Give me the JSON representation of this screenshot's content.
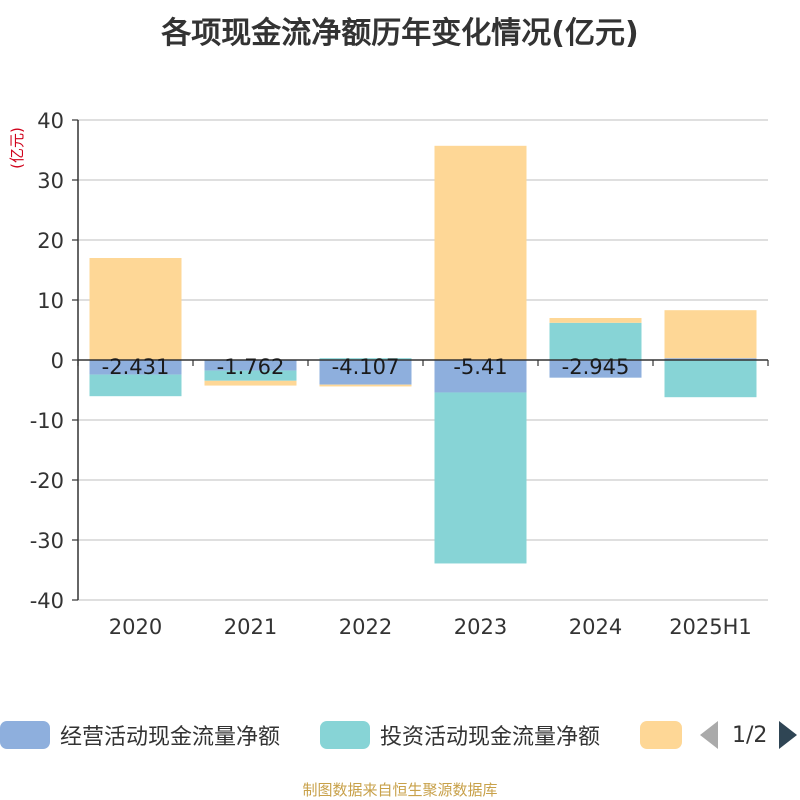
{
  "title": "各项现金流净额历年变化情况(亿元)",
  "source": "制图数据来自恒生聚源数据库",
  "colors": {
    "operating": "#8eafdd",
    "investing": "#87d4d6",
    "financing": "#fed796",
    "label": "#1a1a1a",
    "unit": "#d0021b"
  },
  "legend": {
    "items": [
      {
        "label": "经营活动现金流量净额",
        "color": "#8eafdd"
      },
      {
        "label": "投资活动现金流量净额",
        "color": "#87d4d6"
      },
      {
        "label": "",
        "color": "#fed796"
      }
    ],
    "page_text": "1/2",
    "prev_icon": "triangle-left-icon",
    "next_icon": "triangle-right-icon"
  },
  "chart_data": {
    "type": "bar",
    "stacked": true,
    "title": "各项现金流净额历年变化情况(亿元)",
    "ylabel": "(亿元)",
    "xlabel": "",
    "ylim": [
      -40,
      40
    ],
    "yticks": [
      40,
      30,
      20,
      10,
      0,
      -10,
      -20,
      -30,
      -40
    ],
    "categories": [
      "2020",
      "2021",
      "2022",
      "2023",
      "2024",
      "2025H1"
    ],
    "grid": true,
    "legend_position": "bottom",
    "series": [
      {
        "name": "经营活动现金流量净额",
        "values": [
          -2.431,
          -1.762,
          -4.107,
          -5.41,
          -2.945,
          0.3
        ],
        "labels": [
          "-2.431",
          "-1.762",
          "-4.107",
          "-5.41",
          "-2.945",
          ""
        ]
      },
      {
        "name": "投资活动现金流量净额",
        "values": [
          -3.6,
          -1.7,
          0.3,
          -28.5,
          6.2,
          -6.2
        ]
      },
      {
        "name": "",
        "values": [
          17.0,
          -0.8,
          -0.3,
          35.7,
          0.8,
          8.0
        ]
      }
    ]
  }
}
